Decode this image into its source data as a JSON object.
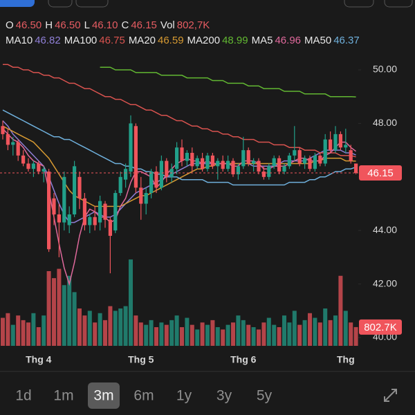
{
  "chart_data": {
    "type": "candlestick",
    "header": [
      {
        "label": "O",
        "value": "46.50"
      },
      {
        "label": "H",
        "value": "46.50"
      },
      {
        "label": "L",
        "value": "46.10"
      },
      {
        "label": "C",
        "value": "46.15"
      },
      {
        "label": "Vol",
        "value": "802,7K"
      }
    ],
    "ylim": [
      39.69,
      51.06
    ],
    "yticks": [
      {
        "value": 40,
        "label": "40.00"
      },
      {
        "value": 42,
        "label": "42.00"
      },
      {
        "value": 44,
        "label": "44.00"
      },
      {
        "value": 46,
        "label": "46.00"
      },
      {
        "value": 48,
        "label": "48.00"
      },
      {
        "value": 50,
        "label": "50.00"
      }
    ],
    "volume_lim": [
      0,
      4000000
    ],
    "up_color": "#22a08a",
    "down_color": "#f0555c",
    "categories": [
      null,
      null,
      null,
      null,
      null,
      null,
      null,
      "Thg 4",
      null,
      null,
      null,
      null,
      null,
      null,
      null,
      null,
      null,
      null,
      null,
      null,
      null,
      null,
      null,
      null,
      null,
      null,
      null,
      "Thg 5",
      null,
      null,
      null,
      null,
      null,
      null,
      null,
      null,
      null,
      null,
      null,
      null,
      null,
      null,
      null,
      null,
      null,
      null,
      null,
      "Thg 6",
      null,
      null,
      null,
      null,
      null,
      null,
      null,
      null,
      null,
      null,
      null,
      null,
      null,
      null,
      null,
      null,
      null,
      null,
      null,
      "Thg",
      null,
      null
    ],
    "open": [
      47.9,
      47.6,
      47.2,
      47.3,
      46.8,
      46.5,
      46.3,
      46.5,
      46.2,
      46.2,
      45.2,
      44.6,
      44.3,
      44.2,
      44.6,
      46.0,
      45.2,
      44.2,
      44.5,
      44.3,
      45.0,
      44.4,
      44.0,
      45.4,
      45.9,
      46.2,
      47.9,
      45.6,
      45.0,
      45.4,
      46.2,
      45.6,
      46.6,
      46.0,
      46.3,
      47.1,
      46.6,
      46.9,
      46.4,
      46.7,
      46.3,
      46.8,
      46.4,
      46.6,
      46.3,
      46.6,
      46.1,
      46.4,
      47.0,
      46.5,
      46.6,
      46.2,
      46.0,
      46.4,
      46.7,
      46.2,
      46.4,
      46.8,
      47.0,
      46.5,
      46.7,
      46.3,
      46.8,
      46.5,
      47.4,
      47.0,
      47.6,
      47.1,
      47.0,
      46.5
    ],
    "high": [
      48.1,
      47.8,
      47.5,
      47.4,
      47.0,
      46.7,
      46.6,
      46.6,
      46.4,
      46.3,
      45.4,
      45.0,
      46.2,
      44.9,
      46.6,
      46.2,
      45.4,
      44.6,
      44.9,
      45.3,
      45.1,
      44.5,
      45.5,
      46.2,
      46.5,
      48.3,
      48.0,
      46.0,
      45.6,
      46.3,
      46.4,
      46.8,
      46.7,
      46.5,
      47.3,
      47.4,
      47.0,
      47.1,
      46.8,
      46.9,
      46.9,
      46.9,
      46.7,
      46.8,
      46.8,
      46.7,
      46.5,
      47.5,
      47.1,
      46.7,
      46.7,
      46.4,
      46.5,
      46.8,
      46.8,
      46.5,
      46.9,
      47.9,
      47.1,
      46.8,
      46.8,
      46.9,
      46.9,
      47.6,
      47.7,
      47.9,
      47.7,
      47.8,
      47.2,
      46.5
    ],
    "low": [
      47.4,
      47.0,
      46.8,
      46.6,
      46.4,
      46.2,
      46.0,
      46.1,
      45.8,
      43.2,
      44.2,
      43.0,
      44.0,
      43.9,
      44.5,
      44.8,
      44.0,
      43.9,
      44.0,
      44.0,
      44.1,
      42.4,
      43.9,
      45.3,
      45.6,
      46.0,
      45.4,
      44.4,
      44.6,
      45.2,
      45.4,
      45.5,
      45.8,
      45.8,
      46.1,
      46.4,
      46.4,
      46.2,
      46.3,
      46.2,
      46.2,
      46.3,
      45.9,
      46.2,
      46.2,
      46.0,
      45.9,
      46.3,
      46.4,
      46.2,
      46.1,
      45.9,
      45.9,
      46.3,
      46.1,
      46.1,
      46.3,
      46.6,
      46.4,
      46.3,
      46.2,
      46.2,
      46.4,
      46.4,
      46.9,
      46.9,
      47.0,
      46.9,
      46.5,
      46.1
    ],
    "close": [
      47.6,
      47.2,
      47.3,
      46.8,
      46.5,
      46.3,
      46.5,
      46.2,
      46.3,
      43.3,
      44.6,
      44.3,
      46.0,
      44.6,
      46.4,
      45.2,
      44.2,
      44.5,
      44.2,
      45.1,
      44.4,
      43.8,
      45.4,
      46.0,
      46.3,
      48.0,
      45.6,
      45.0,
      45.4,
      46.2,
      45.6,
      46.6,
      46.0,
      46.3,
      47.1,
      46.6,
      46.9,
      46.4,
      46.7,
      46.3,
      46.8,
      46.4,
      46.6,
      46.3,
      46.6,
      46.1,
      46.4,
      47.0,
      46.5,
      46.6,
      46.2,
      46.0,
      46.4,
      46.7,
      46.2,
      46.4,
      46.8,
      47.0,
      46.5,
      46.7,
      46.3,
      46.8,
      46.5,
      47.4,
      47.0,
      47.6,
      47.1,
      47.2,
      46.6,
      46.15
    ],
    "volume": [
      1200000,
      1400000,
      900000,
      1300000,
      1100000,
      1000000,
      1400000,
      800000,
      1300000,
      3200000,
      2900000,
      3300000,
      2600000,
      3000000,
      2300000,
      1600000,
      1300000,
      1500000,
      1000000,
      1400000,
      1100000,
      1700000,
      1500000,
      1600000,
      1700000,
      3700000,
      1300000,
      1000000,
      900000,
      1100000,
      800000,
      1000000,
      900000,
      1100000,
      1300000,
      800000,
      1200000,
      900000,
      700000,
      1000000,
      900000,
      1100000,
      800000,
      700000,
      900000,
      1000000,
      1300000,
      1100000,
      900000,
      800000,
      700000,
      1000000,
      1200000,
      900000,
      800000,
      1300000,
      1000000,
      1500000,
      900000,
      1100000,
      1400000,
      1200000,
      1000000,
      1600000,
      1100000,
      1300000,
      3000000,
      1500000,
      1000000,
      802700
    ],
    "volume_value_label": "802.7K",
    "series": [
      {
        "name": "MA10",
        "color": "#8f7fd6",
        "values": [
          48.1,
          47.9,
          47.6,
          47.4,
          47.2,
          47.0,
          46.8,
          46.6,
          46.4,
          46.0,
          45.5,
          45.0,
          44.6,
          44.3,
          44.3,
          44.4,
          44.5,
          44.6,
          44.7,
          44.6,
          44.5,
          44.5,
          44.6,
          44.8,
          45.0,
          45.2,
          45.4,
          45.5,
          45.6,
          45.7,
          45.8,
          45.9,
          46.0,
          46.1,
          46.2,
          46.3,
          46.4,
          46.5,
          46.5,
          46.5,
          46.5,
          46.5,
          46.5,
          46.5,
          46.5,
          46.5,
          46.5,
          46.5,
          46.5,
          46.4,
          46.4,
          46.4,
          46.4,
          46.4,
          46.5,
          46.6,
          46.6,
          46.6,
          46.6,
          46.6,
          46.7,
          46.8,
          46.9,
          47.0,
          47.0,
          47.0,
          47.0,
          46.9,
          46.9,
          46.82
        ]
      },
      {
        "name": "MA100",
        "color": "#d9534f",
        "values": [
          50.2,
          50.2,
          50.1,
          50.1,
          50.0,
          50.0,
          49.9,
          49.9,
          49.8,
          49.8,
          49.7,
          49.7,
          49.6,
          49.5,
          49.5,
          49.4,
          49.3,
          49.3,
          49.2,
          49.1,
          49.0,
          49.0,
          48.9,
          48.9,
          48.8,
          48.7,
          48.7,
          48.6,
          48.5,
          48.5,
          48.4,
          48.3,
          48.3,
          48.2,
          48.1,
          48.1,
          48.0,
          47.9,
          47.9,
          47.8,
          47.8,
          47.7,
          47.7,
          47.6,
          47.6,
          47.5,
          47.5,
          47.4,
          47.4,
          47.4,
          47.3,
          47.3,
          47.3,
          47.2,
          47.2,
          47.2,
          47.1,
          47.1,
          47.1,
          47.0,
          47.0,
          47.0,
          46.9,
          46.9,
          46.9,
          46.9,
          46.8,
          46.8,
          46.8,
          46.75
        ]
      },
      {
        "name": "MA20",
        "color": "#d79a32",
        "values": [
          47.9,
          47.8,
          47.7,
          47.6,
          47.5,
          47.4,
          47.3,
          47.1,
          46.9,
          46.7,
          46.4,
          46.1,
          45.8,
          45.5,
          45.3,
          45.2,
          45.1,
          45.0,
          44.9,
          44.9,
          44.9,
          44.9,
          44.9,
          44.9,
          45.0,
          45.1,
          45.2,
          45.3,
          45.3,
          45.4,
          45.5,
          45.6,
          45.7,
          45.8,
          45.9,
          46.0,
          46.1,
          46.2,
          46.3,
          46.3,
          46.4,
          46.4,
          46.5,
          46.5,
          46.5,
          46.5,
          46.5,
          46.5,
          46.5,
          46.5,
          46.5,
          46.5,
          46.5,
          46.5,
          46.5,
          46.5,
          46.5,
          46.5,
          46.5,
          46.5,
          46.5,
          46.6,
          46.6,
          46.7,
          46.7,
          46.7,
          46.7,
          46.6,
          46.6,
          46.59
        ]
      },
      {
        "name": "MA200",
        "color": "#62b832",
        "values": [
          null,
          null,
          null,
          null,
          null,
          null,
          null,
          null,
          null,
          null,
          null,
          null,
          null,
          null,
          null,
          null,
          null,
          null,
          null,
          50.1,
          50.1,
          50.1,
          50.0,
          50.0,
          50.0,
          50.0,
          49.9,
          49.9,
          49.9,
          49.9,
          49.9,
          49.8,
          49.8,
          49.8,
          49.8,
          49.8,
          49.7,
          49.7,
          49.7,
          49.7,
          49.7,
          49.6,
          49.6,
          49.6,
          49.5,
          49.5,
          49.5,
          49.5,
          49.4,
          49.4,
          49.4,
          49.3,
          49.3,
          49.3,
          49.3,
          49.2,
          49.2,
          49.2,
          49.2,
          49.1,
          49.1,
          49.1,
          49.1,
          49.1,
          49.0,
          49.0,
          49.0,
          49.0,
          49.0,
          48.99
        ]
      },
      {
        "name": "MA5",
        "color": "#e0699c",
        "values": [
          47.8,
          47.6,
          47.4,
          47.3,
          47.1,
          46.8,
          46.6,
          46.5,
          46.4,
          45.5,
          44.5,
          43.5,
          42.6,
          42.0,
          42.8,
          43.8,
          44.5,
          44.8,
          44.7,
          44.5,
          44.5,
          44.3,
          44.4,
          44.9,
          45.2,
          45.8,
          46.2,
          46.2,
          46.1,
          46.0,
          45.6,
          45.8,
          46.1,
          46.3,
          46.5,
          46.6,
          46.7,
          46.6,
          46.6,
          46.5,
          46.6,
          46.5,
          46.5,
          46.5,
          46.5,
          46.4,
          46.4,
          46.6,
          46.6,
          46.6,
          46.5,
          46.3,
          46.3,
          46.4,
          46.4,
          46.4,
          46.5,
          46.6,
          46.7,
          46.7,
          46.6,
          46.6,
          46.6,
          46.8,
          46.9,
          47.1,
          47.3,
          47.3,
          47.1,
          46.96
        ]
      },
      {
        "name": "MA50",
        "color": "#6fb0dc",
        "values": [
          48.5,
          48.4,
          48.3,
          48.2,
          48.1,
          48.0,
          47.9,
          47.8,
          47.7,
          47.6,
          47.5,
          47.5,
          47.4,
          47.4,
          47.3,
          47.2,
          47.1,
          47.0,
          46.9,
          46.8,
          46.7,
          46.6,
          46.5,
          46.5,
          46.4,
          46.4,
          46.3,
          46.3,
          46.2,
          46.2,
          46.1,
          46.1,
          46.0,
          46.0,
          46.0,
          45.9,
          45.9,
          45.9,
          45.9,
          45.9,
          45.8,
          45.8,
          45.8,
          45.8,
          45.8,
          45.7,
          45.7,
          45.7,
          45.7,
          45.7,
          45.7,
          45.7,
          45.7,
          45.7,
          45.7,
          45.7,
          45.8,
          45.8,
          45.8,
          45.8,
          45.9,
          45.9,
          46.0,
          46.0,
          46.1,
          46.2,
          46.2,
          46.3,
          46.3,
          46.37
        ]
      }
    ],
    "ranges": [
      "1d",
      "1m",
      "3m",
      "6m",
      "1y",
      "3y",
      "5y"
    ],
    "selected_range": "3m"
  }
}
